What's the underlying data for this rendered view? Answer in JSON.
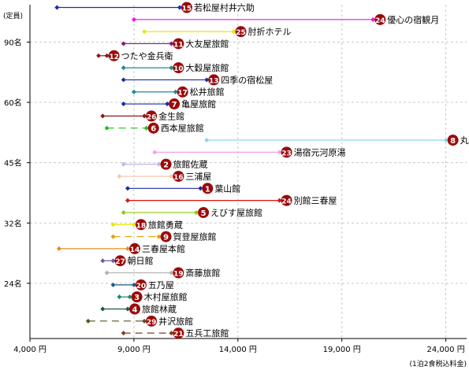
{
  "chart_data": {
    "type": "range",
    "x_unit_label": "(1泊2食税込料金)",
    "y_unit_label": "(定員)",
    "xlim": [
      4000,
      25000
    ],
    "x_ticks": [
      {
        "value": 4000,
        "label": "4,000 円"
      },
      {
        "value": 9000,
        "label": "9,000 円"
      },
      {
        "value": 14000,
        "label": "14,000 円"
      },
      {
        "value": 19000,
        "label": "19,000 円"
      },
      {
        "value": 24000,
        "label": "24,000 円"
      }
    ],
    "y_ticks": [
      "90名",
      "60名",
      "45名",
      "32名",
      "24名"
    ],
    "y_tick_rows": [
      3,
      8,
      13,
      18,
      23
    ],
    "grid": true,
    "inns": [
      {
        "no": "15",
        "name": "若松屋村井六助",
        "min": 5300,
        "max": 11200,
        "color": "#1e2aa8",
        "style": "solid"
      },
      {
        "no": "24",
        "name": "優心の宿観月",
        "min": 9000,
        "max": 20500,
        "color": "#ee11ee",
        "style": "solid"
      },
      {
        "no": "25",
        "name": "肘折ホテル",
        "min": 9500,
        "max": 13800,
        "color": "#e8e800",
        "style": "solid"
      },
      {
        "no": "11",
        "name": "大友屋旅館",
        "min": 8500,
        "max": 10800,
        "color": "#8a0f8a",
        "style": "solid"
      },
      {
        "no": "12",
        "name": "つたや金兵衛",
        "min": 7300,
        "max": 7700,
        "color": "#8b1a1a",
        "style": "solid"
      },
      {
        "no": "10",
        "name": "大穀屋旅館",
        "min": 8500,
        "max": 10800,
        "color": "#1e8a8a",
        "style": "solid"
      },
      {
        "no": "13",
        "name": "四季の宿松屋",
        "min": 8500,
        "max": 12500,
        "color": "#1e2aa8",
        "style": "solid"
      },
      {
        "no": "17",
        "name": "松井旅館",
        "min": 9000,
        "max": 11000,
        "color": "#1e8a8a",
        "style": "solid"
      },
      {
        "no": "7",
        "name": "亀屋旅館",
        "min": 8500,
        "max": 10600,
        "color": "#1e2aa8",
        "style": "solid"
      },
      {
        "no": "26",
        "name": "金生館",
        "min": 7500,
        "max": 9500,
        "color": "#8b1a1a",
        "style": "solid"
      },
      {
        "no": "6",
        "name": "西本屋旅館",
        "min": 7700,
        "max": 9600,
        "color": "#22bb22",
        "style": "dashed"
      },
      {
        "no": "8",
        "name": "丸屋旅館",
        "min": 12500,
        "max": 24000,
        "color": "#8fd6e8",
        "style": "solid"
      },
      {
        "no": "23",
        "name": "湯宿元河原湯",
        "min": 10000,
        "max": 16000,
        "color": "#f0a0e8",
        "style": "solid"
      },
      {
        "no": "2",
        "name": "旅館佐蔵",
        "min": 8500,
        "max": 10200,
        "color": "#b8b8f0",
        "style": "solid"
      },
      {
        "no": "16",
        "name": "三浦屋",
        "min": 8300,
        "max": 10800,
        "color": "#f8c8a8",
        "style": "solid"
      },
      {
        "no": "1",
        "name": "葉山館",
        "min": 8700,
        "max": 12200,
        "color": "#1e2aa8",
        "style": "solid"
      },
      {
        "no": "24",
        "name": "別館三春屋",
        "min": 8700,
        "max": 16000,
        "color": "#dd1111",
        "style": "solid"
      },
      {
        "no": "5",
        "name": "えびす屋旅館",
        "min": 8500,
        "max": 12000,
        "color": "#88cc00",
        "style": "solid"
      },
      {
        "no": "18",
        "name": "旅館勇蔵",
        "min": 8000,
        "max": 9000,
        "color": "#e8e800",
        "style": "solid"
      },
      {
        "no": "9",
        "name": "賀登屋旅館",
        "min": 8000,
        "max": 10200,
        "color": "#e8a000",
        "style": "dashed"
      },
      {
        "no": "14",
        "name": "三春屋本館",
        "min": 5400,
        "max": 8700,
        "color": "#e88a22",
        "style": "solid"
      },
      {
        "no": "27",
        "name": "朝日館",
        "min": 7500,
        "max": 8000,
        "color": "#6a5aaa",
        "style": "solid"
      },
      {
        "no": "19",
        "name": "斎藤旅館",
        "min": 7700,
        "max": 10800,
        "color": "#b0b0b0",
        "style": "solid"
      },
      {
        "no": "20",
        "name": "五乃屋",
        "min": 8000,
        "max": 9000,
        "color": "#1e5a8a",
        "style": "solid"
      },
      {
        "no": "3",
        "name": "木村屋旅館",
        "min": 8300,
        "max": 8800,
        "color": "#1e8a6a",
        "style": "solid"
      },
      {
        "no": "4",
        "name": "旅館林蔵",
        "min": 7500,
        "max": 8700,
        "color": "#1e5a3a",
        "style": "solid"
      },
      {
        "no": "29",
        "name": "井沢旅館",
        "min": 6800,
        "max": 9500,
        "color": "#555520",
        "style": "dashed"
      },
      {
        "no": "21",
        "name": "五兵工旅館",
        "min": 8500,
        "max": 10800,
        "color": "#8b3a1a",
        "style": "dashed"
      }
    ]
  }
}
